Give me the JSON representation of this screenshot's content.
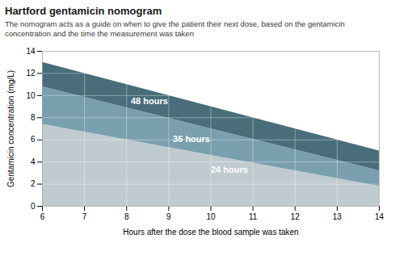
{
  "chart_data": {
    "type": "area",
    "title": "Hartford gentamicin nomogram",
    "subtitle": "The nomogram acts as a guide on when to give the patient their next dose, based on the gentamicin\nconcentration and the time the measurement was taken",
    "xlabel": "Hours after the dose the blood sample was taken",
    "ylabel": "Gentamicin concentration (mg/L)",
    "x": [
      6,
      14
    ],
    "series": [
      {
        "name": "24 hours",
        "color": "#c0cbcf",
        "values": [
          7.4,
          1.8
        ],
        "lower": [
          0.0,
          0.0
        ],
        "label_position": [
          10.0,
          3.0
        ]
      },
      {
        "name": "36 hours",
        "color": "#7a9faf",
        "values": [
          10.8,
          3.2
        ],
        "lower": [
          7.4,
          1.8
        ],
        "label_position": [
          9.1,
          5.8
        ]
      },
      {
        "name": "48 hours",
        "color": "#496e7a",
        "values": [
          13.0,
          5.0
        ],
        "lower": [
          10.8,
          3.2
        ],
        "label_position": [
          8.1,
          9.2
        ]
      }
    ],
    "xlim": [
      6,
      14
    ],
    "ylim": [
      0,
      14
    ],
    "xticks": [
      6,
      7,
      8,
      9,
      10,
      11,
      12,
      13,
      14
    ],
    "yticks": [
      0,
      2,
      4,
      6,
      8,
      10,
      12,
      14
    ],
    "grid": true
  }
}
